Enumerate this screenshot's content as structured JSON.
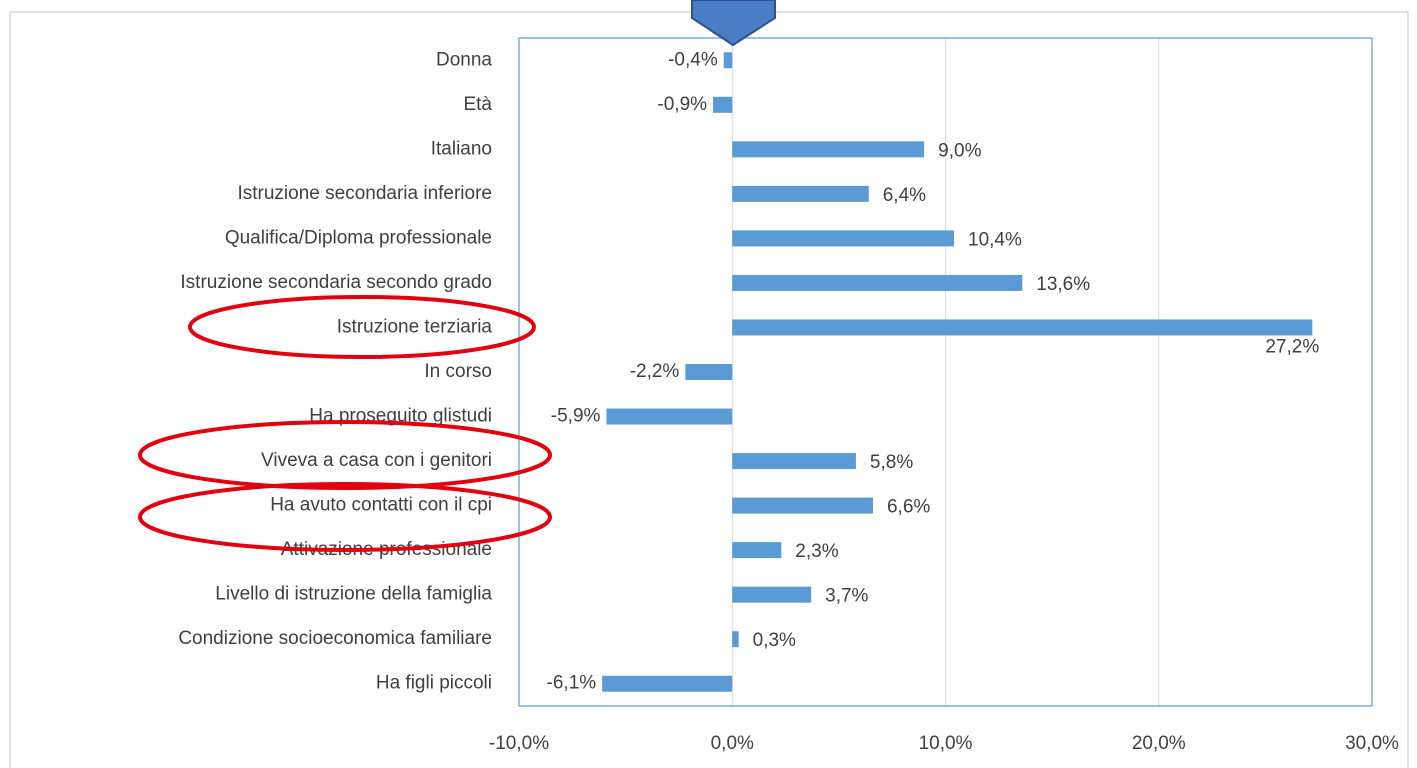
{
  "chart_data": {
    "type": "bar",
    "orientation": "horizontal",
    "categories": [
      "Donna",
      "Età",
      "Italiano",
      "Istruzione secondaria inferiore",
      "Qualifica/Diploma professionale",
      "Istruzione secondaria secondo grado",
      "Istruzione terziaria",
      "In corso",
      "Ha proseguito glistudi",
      "Viveva a casa con i genitori",
      "Ha avuto contatti con il cpi",
      "Attivazione professionale",
      "Livello di istruzione della famiglia",
      "Condizione socioeconomica familiare",
      "Ha figli piccoli"
    ],
    "values": [
      -0.4,
      -0.9,
      9.0,
      6.4,
      10.4,
      13.6,
      27.2,
      -2.2,
      -5.9,
      5.8,
      6.6,
      2.3,
      3.7,
      0.3,
      -6.1
    ],
    "value_labels": [
      "-0,4%",
      "-0,9%",
      "9,0%",
      "6,4%",
      "10,4%",
      "13,6%",
      "27,2%",
      "-2,2%",
      "-5,9%",
      "5,8%",
      "6,6%",
      "2,3%",
      "3,7%",
      "0,3%",
      "-6,1%"
    ],
    "color": "#5b9bd5",
    "xlim": [
      -10,
      30
    ],
    "xticks": [
      {
        "value": -10,
        "label": "-10,0%"
      },
      {
        "value": 0,
        "label": "0,0%"
      },
      {
        "value": 10,
        "label": "10,0%"
      },
      {
        "value": 20,
        "label": "20,0%"
      },
      {
        "value": 30,
        "label": "30,0%"
      }
    ],
    "grid": true
  }
}
